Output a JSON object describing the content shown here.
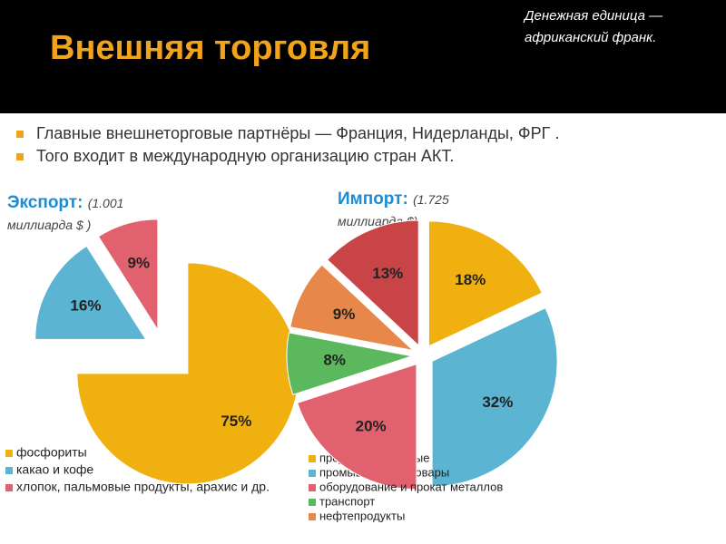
{
  "header": {
    "title": "Внешняя торговля",
    "note": "Денежная единица — африканский франк."
  },
  "bullets": [
    "Главные внешнеторговые партнёры — Франция, Нидерланды, ФРГ .",
    "Того входит в международную организацию стран АКТ."
  ],
  "chart_data": [
    {
      "type": "pie",
      "title": "Экспорт:",
      "subtitle": "(1.001 миллиарда $ )",
      "categories": [
        "фосфориты",
        "какао и кофе",
        "хлопок, пальмовые продукты, арахис и др."
      ],
      "values": [
        75,
        16,
        9
      ],
      "value_labels": [
        "75%",
        "16%",
        "9%"
      ],
      "colors": [
        "#f0b010",
        "#5ab4d2",
        "#e2616f"
      ]
    },
    {
      "type": "pie",
      "title": "Импорт:",
      "subtitle": "(1.725 миллиарда $)",
      "categories": [
        "продовольственные товары",
        "промышленные товары",
        "оборудование и прокат металлов",
        "транспорт",
        "нефтепродукты",
        null
      ],
      "values": [
        18,
        32,
        20,
        8,
        9,
        13
      ],
      "value_labels": [
        "18%",
        "32%",
        "20%",
        "8%",
        "9%",
        "13%"
      ],
      "colors": [
        "#f0b010",
        "#5ab4d2",
        "#e2616f",
        "#5cb85c",
        "#e8874a",
        "#c94446"
      ]
    }
  ]
}
